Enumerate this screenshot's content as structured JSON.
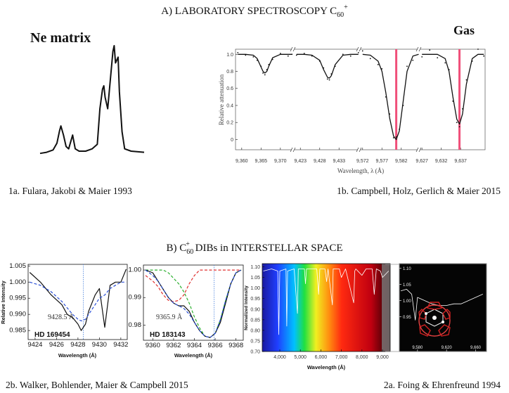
{
  "section_a": {
    "title": {
      "text": "A) LABORATORY SPECTROSCOPY C",
      "sub": "60",
      "sup": "+"
    }
  },
  "section_b": {
    "title": {
      "text": "B) C",
      "sub": "60",
      "sup": "+",
      "rest": " DIBs in INTERSTELLAR SPACE"
    }
  },
  "chart_data": [
    {
      "type": "line",
      "title": "Ne matrix",
      "caption": "1a. Fulara, Jakobi & Maier 1993",
      "xlim": [
        0,
        80
      ],
      "ylim": [
        0,
        1
      ],
      "x": [
        0,
        5,
        10,
        13,
        15,
        16,
        18,
        20,
        22,
        24,
        25,
        27,
        30,
        35,
        40,
        44,
        46,
        48,
        49,
        50,
        52,
        54,
        56,
        57,
        58,
        60,
        61,
        63,
        65,
        70,
        80
      ],
      "series": [
        {
          "color": "#111111",
          "values": [
            0.06,
            0.07,
            0.09,
            0.15,
            0.26,
            0.3,
            0.22,
            0.12,
            0.1,
            0.18,
            0.22,
            0.1,
            0.08,
            0.08,
            0.1,
            0.14,
            0.45,
            0.62,
            0.65,
            0.55,
            0.45,
            0.7,
            0.95,
            1.0,
            0.85,
            0.9,
            0.6,
            0.25,
            0.1,
            0.08,
            0.07
          ]
        }
      ]
    },
    {
      "type": "broken-line",
      "title": "Gas",
      "caption": "1b. Campbell, Holz, Gerlich & Maier 2015",
      "xlabel": "Wavelength, λ (Å)",
      "ylabel": "Relative attenuation",
      "ylim": [
        -0.12,
        1.06
      ],
      "yticks": [
        0,
        0.2,
        0.4,
        0.6,
        0.8,
        {
          "value": 1,
          "label": "1.0"
        }
      ],
      "marker_color": "#f0507a",
      "segments": [
        {
          "xlim": [
            9358.4,
            9373.5
          ],
          "xticks": [
            {
              "value": 9360,
              "label": "9,360"
            },
            {
              "value": 9365,
              "label": "9,365"
            },
            {
              "value": 9370,
              "label": "9,370"
            }
          ],
          "x": [
            9359,
            9361,
            9363,
            9364,
            9365,
            9365.5,
            9366,
            9366.5,
            9367,
            9368,
            9370,
            9372,
            9373
          ],
          "series": [
            {
              "style": "dots",
              "color": "#111111",
              "values": [
                1.02,
                0.99,
                0.97,
                0.93,
                0.86,
                0.78,
                0.76,
                0.82,
                0.88,
                0.94,
                1.01,
                0.98,
                1.0
              ]
            },
            {
              "color": "#111111",
              "values": [
                1,
                1,
                0.99,
                0.95,
                0.85,
                0.8,
                0.78,
                0.8,
                0.86,
                0.96,
                1,
                1,
                1
              ]
            }
          ]
        },
        {
          "xlim": [
            9421.5,
            9438
          ],
          "xticks": [
            {
              "value": 9423,
              "label": "9,423"
            },
            {
              "value": 9428,
              "label": "9,428"
            },
            {
              "value": 9433,
              "label": "9,433"
            }
          ],
          "x": [
            9422,
            9424,
            9426,
            9428,
            9429,
            9430,
            9430.5,
            9431,
            9432,
            9434,
            9436,
            9438
          ],
          "series": [
            {
              "style": "dots",
              "color": "#111111",
              "values": [
                0.99,
                1.01,
                0.98,
                0.92,
                0.84,
                0.71,
                0.7,
                0.77,
                0.86,
                1.0,
                0.98,
                1.02
              ]
            },
            {
              "color": "#111111",
              "values": [
                1,
                1,
                0.99,
                0.93,
                0.82,
                0.73,
                0.72,
                0.75,
                0.88,
                0.99,
                1,
                1
              ]
            }
          ]
        },
        {
          "xlim": [
            9571.5,
            9586.5
          ],
          "xticks": [
            {
              "value": 9572,
              "label": "9,572"
            },
            {
              "value": 9577,
              "label": "9,577"
            },
            {
              "value": 9582,
              "label": "9,582"
            }
          ],
          "markers": [
            9580.7
          ],
          "x": [
            9572,
            9574,
            9576,
            9577,
            9578,
            9579,
            9580,
            9580.7,
            9581.5,
            9582.5,
            9583.5,
            9585,
            9586.5
          ],
          "series": [
            {
              "style": "dots",
              "color": "#111111",
              "values": [
                1.04,
                0.95,
                0.88,
                0.83,
                0.5,
                0.3,
                0.02,
                0.03,
                0.12,
                0.4,
                0.86,
                0.93,
                1.06
              ]
            },
            {
              "color": "#111111",
              "values": [
                1,
                0.99,
                0.92,
                0.8,
                0.55,
                0.25,
                0.04,
                0,
                0.1,
                0.45,
                0.8,
                0.98,
                1
              ]
            }
          ]
        },
        {
          "xlim": [
            9626.6,
            9643.2
          ],
          "xticks": [
            {
              "value": 9627,
              "label": "9,627"
            },
            {
              "value": 9632,
              "label": "9,632"
            },
            {
              "value": 9637,
              "label": "9,637"
            }
          ],
          "markers": [
            9636.7
          ],
          "x": [
            9627,
            9629,
            9631,
            9633,
            9634,
            9635,
            9636,
            9636.7,
            9637.5,
            9638.5,
            9640,
            9641.5,
            9643
          ],
          "series": [
            {
              "style": "dots",
              "color": "#111111",
              "values": [
                0.97,
                1.05,
                0.96,
                0.9,
                0.82,
                0.45,
                0.2,
                0.15,
                0.36,
                0.7,
                0.92,
                1.06,
                0.98
              ]
            },
            {
              "color": "#111111",
              "values": [
                1,
                1,
                1,
                0.95,
                0.8,
                0.5,
                0.24,
                0.18,
                0.3,
                0.65,
                0.95,
                1,
                1
              ]
            }
          ]
        }
      ]
    },
    {
      "type": "line",
      "caption": "2b. Walker, Bohlender, Maier & Campbell 2015",
      "xlabel": "Wavelength (Å)",
      "ylabel": "Relative Intensity",
      "annotations": [
        "9428.5 Å",
        "HD 169454"
      ],
      "xlim": [
        9423.35,
        9432.6
      ],
      "ylim": [
        0.9822,
        1.0055
      ],
      "xticks": [
        9424,
        9426,
        9428,
        9430,
        9432
      ],
      "yticks": [
        0.985,
        {
          "value": 0.99,
          "label": "0.990"
        },
        0.995,
        {
          "value": 1,
          "label": "1.000"
        },
        1.005
      ],
      "markers": [
        9428.5
      ],
      "marker_color": "#5a8ee0",
      "x": [
        9423.5,
        9424.5,
        9425.5,
        9426.5,
        9427,
        9427.5,
        9428,
        9428.3,
        9428.7,
        9429,
        9429.6,
        9430,
        9430.5,
        9431,
        9431.5,
        9432,
        9432.5
      ],
      "series": [
        {
          "color": "#111111",
          "values": [
            1.003,
            1.0,
            0.996,
            0.993,
            0.99,
            0.989,
            0.987,
            0.985,
            0.987,
            0.991,
            0.996,
            0.998,
            0.986,
            0.999,
            1.0,
            1.0,
            1.004
          ]
        },
        {
          "color": "#2a4fd6",
          "dash": true,
          "values": [
            1.0,
            0.999,
            0.997,
            0.994,
            0.992,
            0.99,
            0.9885,
            0.988,
            0.9885,
            0.99,
            0.993,
            0.995,
            0.996,
            0.998,
            0.999,
            1.0,
            1.0
          ]
        }
      ]
    },
    {
      "type": "line",
      "xlabel": "Wavelength (Å)",
      "annotations": [
        "9365.9 Å",
        "HD 183143"
      ],
      "xlim": [
        9359.1,
        9368.7
      ],
      "ylim": [
        0.9745,
        1.0018
      ],
      "xticks": [
        9360,
        9362,
        9364,
        9366,
        9368
      ],
      "yticks": [
        0.98,
        0.99,
        {
          "value": 1,
          "label": "1.00"
        }
      ],
      "markers": [
        9365.9
      ],
      "marker_color": "#5a8ee0",
      "x": [
        9359.3,
        9360,
        9360.5,
        9361,
        9361.5,
        9362,
        9362.5,
        9363,
        9363.5,
        9364,
        9364.5,
        9365,
        9365.5,
        9366,
        9366.5,
        9367,
        9367.5,
        9368,
        9368.5
      ],
      "series": [
        {
          "color": "#e03030",
          "dash": true,
          "values": [
            0.998,
            0.996,
            0.994,
            0.991,
            0.989,
            0.9885,
            0.989,
            0.991,
            0.995,
            0.998,
            1.0,
            1.0,
            1.0,
            1.0,
            1.0,
            1.0,
            1.0,
            1.0,
            1.0
          ]
        },
        {
          "color": "#2db030",
          "dash": true,
          "values": [
            1.0,
            1.0,
            1.0,
            1.0,
            0.999,
            0.997,
            0.995,
            0.992,
            0.988,
            0.983,
            0.979,
            0.976,
            0.9755,
            0.977,
            0.982,
            0.989,
            0.995,
            0.999,
            1.0
          ]
        },
        {
          "color": "#111111",
          "values": [
            1.0,
            0.999,
            0.996,
            0.993,
            0.99,
            0.988,
            0.987,
            0.987,
            0.985,
            0.981,
            0.978,
            0.976,
            0.9755,
            0.977,
            0.981,
            0.988,
            0.995,
            0.999,
            1.0
          ]
        },
        {
          "color": "#2a4fd6",
          "dash": true,
          "values": [
            1.0,
            0.998,
            0.996,
            0.993,
            0.99,
            0.988,
            0.987,
            0.986,
            0.984,
            0.981,
            0.978,
            0.976,
            0.9755,
            0.977,
            0.982,
            0.989,
            0.995,
            0.999,
            1.0
          ]
        }
      ]
    },
    {
      "type": "line",
      "caption": "2a. Foing & Ehrenfreund 1994",
      "xlabel": "Wavelength (Å)",
      "ylabel": "Normalized Intensity",
      "xlim": [
        3144,
        9376
      ],
      "ylim": [
        0.7,
        1.115
      ],
      "xticks": [
        {
          "value": 4000,
          "label": "4,000"
        },
        {
          "value": 5000,
          "label": "5,000"
        },
        {
          "value": 6000,
          "label": "6,000"
        },
        {
          "value": 7000,
          "label": "7,000"
        },
        {
          "value": 8000,
          "label": "8,000"
        },
        {
          "value": 9000,
          "label": "9,000"
        }
      ],
      "yticks": [
        {
          "value": 0.7,
          "label": "0.70"
        },
        0.75,
        {
          "value": 0.8,
          "label": "0.80"
        },
        0.85,
        {
          "value": 0.9,
          "label": "0.90"
        },
        0.95,
        {
          "value": 1,
          "label": "1.00"
        },
        1.05,
        {
          "value": 1.1,
          "label": "1.10"
        }
      ],
      "x": [
        3200,
        3600,
        3900,
        3950,
        4000,
        4300,
        4340,
        4380,
        4700,
        4860,
        4900,
        5200,
        5250,
        5300,
        5800,
        5890,
        5950,
        6200,
        6280,
        6350,
        6560,
        6600,
        6900,
        7000,
        7200,
        7600,
        7650,
        7700,
        8000,
        8200,
        8500,
        8600,
        8700,
        8900,
        9000,
        9300
      ],
      "series": [
        {
          "color": "#ffffff",
          "values": [
            1.08,
            1.09,
            1.08,
            0.78,
            1.08,
            1.09,
            0.82,
            1.08,
            1.09,
            0.88,
            1.09,
            1.09,
            1.02,
            1.09,
            1.09,
            0.97,
            1.09,
            1.09,
            1.03,
            1.09,
            0.92,
            1.09,
            1.09,
            1.05,
            1.09,
            0.93,
            1.08,
            1.09,
            1.06,
            1.09,
            1.09,
            0.97,
            1.09,
            1.08,
            1.05,
            1.08
          ]
        }
      ]
    },
    {
      "type": "line",
      "xlim": [
        9555,
        9675
      ],
      "ylim": [
        0.843,
        1.114
      ],
      "xticks": [
        {
          "value": 9580,
          "label": "9,580"
        },
        {
          "value": 9620,
          "label": "9,620"
        },
        {
          "value": 9660,
          "label": "9,660"
        }
      ],
      "yticks": [
        0.95,
        {
          "value": 1,
          "label": "1.00"
        },
        1.05,
        {
          "value": 1.1,
          "label": "1.10"
        }
      ],
      "x": [
        9557,
        9565,
        9572,
        9577,
        9580,
        9590,
        9600,
        9610,
        9620,
        9630,
        9640,
        9650,
        9660,
        9670
      ],
      "series": [
        {
          "color": "#ffffff",
          "values": [
            1.03,
            1.035,
            1.02,
            0.94,
            1.01,
            1.0,
            0.99,
            0.985,
            0.985,
            0.99,
            0.99,
            1.0,
            1.01,
            1.02
          ]
        }
      ]
    }
  ]
}
